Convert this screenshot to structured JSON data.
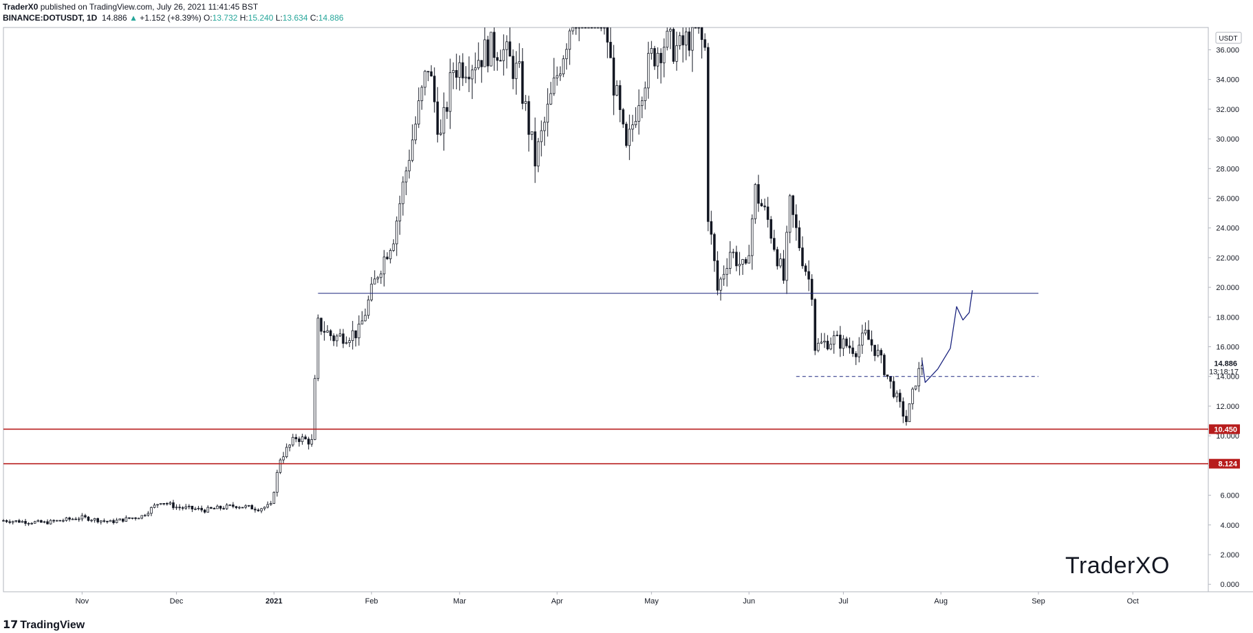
{
  "header": {
    "publisher": "TraderX0",
    "published_text": "published on TradingView.com, July 26, 2021 11:41:45 BST",
    "symbol": "BINANCE:DOTUSDT, 1D",
    "last": "14.886",
    "change": "+1.152 (+8.39%)",
    "o_label": "O:",
    "o_value": "13.732",
    "h_label": "H:",
    "h_value": "15.240",
    "l_label": "L:",
    "l_value": "13.634",
    "c_label": "C:",
    "c_value": "14.886"
  },
  "watermark": "TraderXO",
  "footer_brand": "TradingView",
  "colors": {
    "candle": "#131722",
    "support": "#b71c1c",
    "trend": "#1a237e",
    "grid_text": "#131722",
    "accent_green": "#26a69a"
  },
  "chart_data": {
    "type": "candlestick",
    "title": "BINANCE:DOTUSDT, 1D",
    "currency_label": "USDT",
    "x_range": [
      "2020-10-07",
      "2021-10-25"
    ],
    "y_range": [
      -0.5,
      37.5
    ],
    "y_ticks": [
      "0.000",
      "2.000",
      "4.000",
      "6.000",
      "8.000",
      "10.000",
      "12.000",
      "14.000",
      "16.000",
      "18.000",
      "20.000",
      "22.000",
      "24.000",
      "26.000",
      "28.000",
      "30.000",
      "32.000",
      "34.000",
      "36.000"
    ],
    "x_ticks": [
      {
        "label": "Nov",
        "date": "2020-11-01"
      },
      {
        "label": "Dec",
        "date": "2020-12-01"
      },
      {
        "label": "2021",
        "date": "2021-01-01"
      },
      {
        "label": "Feb",
        "date": "2021-02-01"
      },
      {
        "label": "Mar",
        "date": "2021-03-01"
      },
      {
        "label": "Apr",
        "date": "2021-04-01"
      },
      {
        "label": "May",
        "date": "2021-05-01"
      },
      {
        "label": "Jun",
        "date": "2021-06-01"
      },
      {
        "label": "Jul",
        "date": "2021-07-01"
      },
      {
        "label": "Aug",
        "date": "2021-08-01"
      },
      {
        "label": "Sep",
        "date": "2021-09-01"
      },
      {
        "label": "Oct",
        "date": "2021-10-01"
      }
    ],
    "price_labels": [
      {
        "value": 10.45,
        "text": "10.450",
        "color": "#b71c1c"
      },
      {
        "value": 8.124,
        "text": "8.124",
        "color": "#b71c1c"
      },
      {
        "value": 14.886,
        "text": "14.886",
        "color": "#ffffff"
      }
    ],
    "countdown": "13:18:17",
    "horizontal_lines": [
      {
        "name": "support-upper",
        "value": 10.45,
        "style": "solid",
        "color": "#b71c1c",
        "from": "2020-10-07"
      },
      {
        "name": "support-lower",
        "value": 8.124,
        "style": "solid",
        "color": "#b71c1c",
        "from": "2020-10-07"
      },
      {
        "name": "resistance",
        "value": 19.6,
        "style": "solid",
        "color": "#1a237e",
        "from": "2021-01-15",
        "to": "2021-09-01"
      },
      {
        "name": "dashed-level",
        "value": 14.0,
        "style": "dashed",
        "color": "#1a237e",
        "from": "2021-06-16",
        "to": "2021-09-01"
      }
    ],
    "projection_path": [
      {
        "date": "2021-07-26",
        "value": 15.1
      },
      {
        "date": "2021-07-27",
        "value": 13.6
      },
      {
        "date": "2021-07-31",
        "value": 14.5
      },
      {
        "date": "2021-08-04",
        "value": 15.9
      },
      {
        "date": "2021-08-06",
        "value": 18.7
      },
      {
        "date": "2021-08-08",
        "value": 17.8
      },
      {
        "date": "2021-08-10",
        "value": 18.3
      },
      {
        "date": "2021-08-11",
        "value": 19.8
      }
    ],
    "ohlc_keyframes": [
      [
        "2020-10-07",
        4.3
      ],
      [
        "2020-10-20",
        4.15
      ],
      [
        "2020-11-01",
        4.5
      ],
      [
        "2020-11-10",
        4.2
      ],
      [
        "2020-11-20",
        4.6
      ],
      [
        "2020-11-26",
        5.6
      ],
      [
        "2020-12-01",
        5.2
      ],
      [
        "2020-12-10",
        5.0
      ],
      [
        "2020-12-20",
        5.3
      ],
      [
        "2020-12-27",
        5.1
      ],
      [
        "2020-12-31",
        5.3
      ],
      [
        "2021-01-03",
        8.5
      ],
      [
        "2021-01-08",
        9.9
      ],
      [
        "2021-01-13",
        9.6
      ],
      [
        "2021-01-15",
        17.5
      ],
      [
        "2021-01-20",
        16.6
      ],
      [
        "2021-01-28",
        17.0
      ],
      [
        "2021-02-03",
        21.0
      ],
      [
        "2021-02-08",
        23.5
      ],
      [
        "2021-02-13",
        29.0
      ],
      [
        "2021-02-19",
        35.0
      ],
      [
        "2021-02-23",
        30.0
      ],
      [
        "2021-02-27",
        34.8
      ],
      [
        "2021-03-05",
        35.2
      ],
      [
        "2021-03-10",
        36.0
      ],
      [
        "2021-03-14",
        36.2
      ],
      [
        "2021-03-20",
        34.2
      ],
      [
        "2021-03-25",
        28.5
      ],
      [
        "2021-03-31",
        33.5
      ],
      [
        "2021-04-04",
        36.8
      ],
      [
        "2021-04-06",
        38.5
      ],
      [
        "2021-04-16",
        38.5
      ],
      [
        "2021-04-18",
        35.0
      ],
      [
        "2021-04-23",
        29.0
      ],
      [
        "2021-04-27",
        33.0
      ],
      [
        "2021-05-01",
        35.5
      ],
      [
        "2021-05-05",
        36.5
      ],
      [
        "2021-05-10",
        36.0
      ],
      [
        "2021-05-15",
        37.5
      ],
      [
        "2021-05-18",
        36.0
      ],
      [
        "2021-05-19",
        25.0
      ],
      [
        "2021-05-22",
        19.8
      ],
      [
        "2021-05-26",
        22.5
      ],
      [
        "2021-05-31",
        21.0
      ],
      [
        "2021-06-03",
        26.5
      ],
      [
        "2021-06-07",
        24.5
      ],
      [
        "2021-06-12",
        20.5
      ],
      [
        "2021-06-14",
        25.5
      ],
      [
        "2021-06-18",
        22.0
      ],
      [
        "2021-06-21",
        19.8
      ],
      [
        "2021-06-22",
        16.0
      ],
      [
        "2021-06-28",
        16.5
      ],
      [
        "2021-07-05",
        15.8
      ],
      [
        "2021-07-08",
        16.8
      ],
      [
        "2021-07-12",
        15.5
      ],
      [
        "2021-07-15",
        14.0
      ],
      [
        "2021-07-20",
        11.5
      ],
      [
        "2021-07-21",
        11.0
      ],
      [
        "2021-07-24",
        13.7
      ],
      [
        "2021-07-26",
        14.886
      ]
    ]
  }
}
